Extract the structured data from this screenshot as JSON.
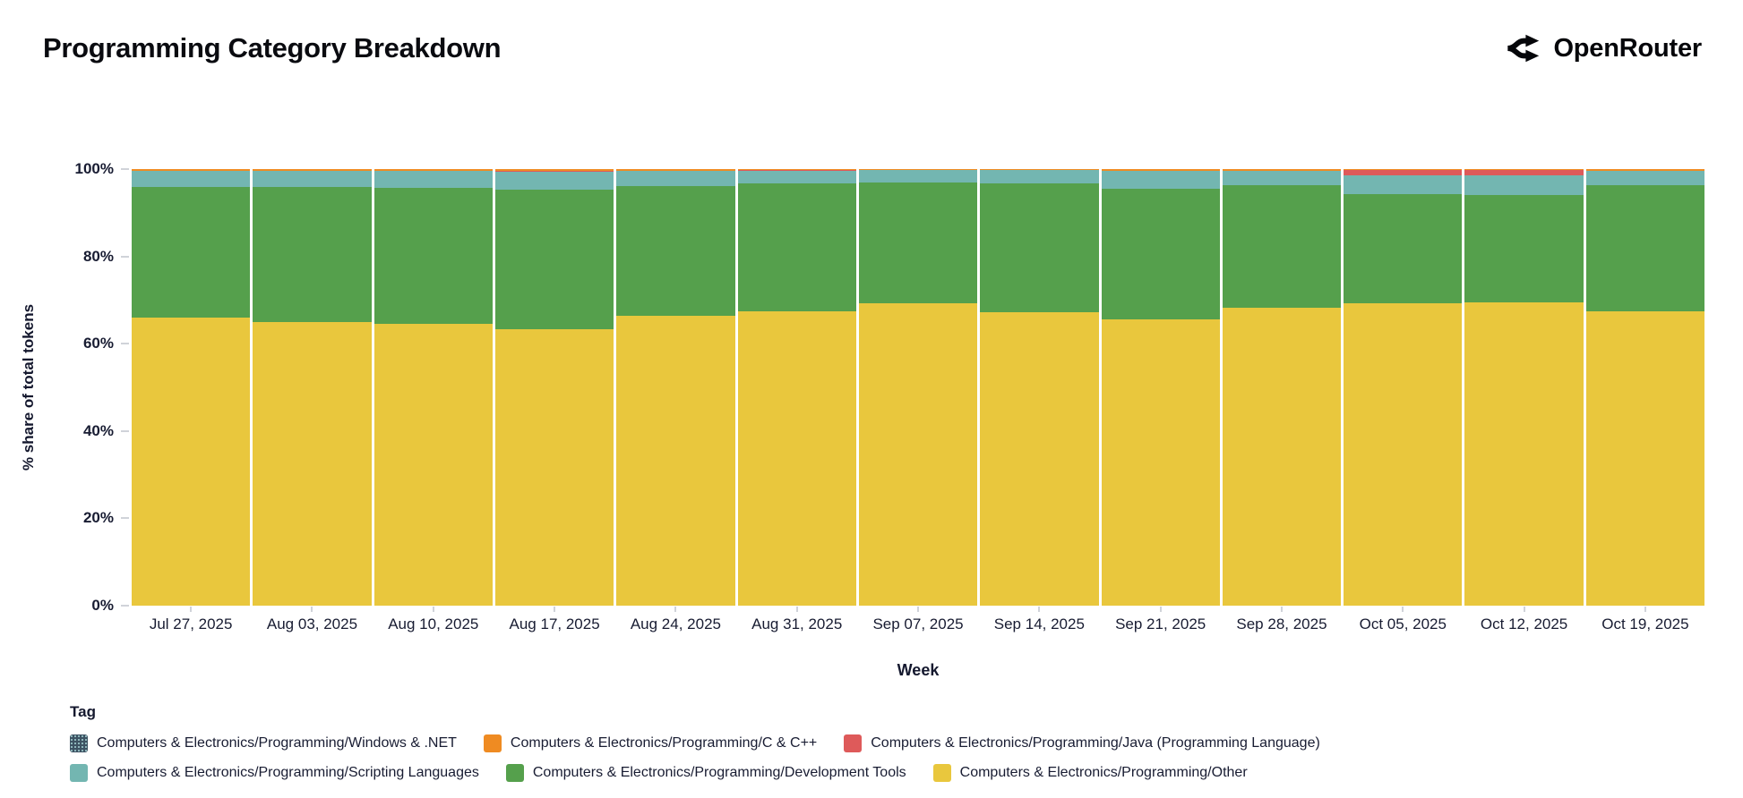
{
  "header": {
    "title": "Programming Category Breakdown",
    "brand": "OpenRouter"
  },
  "chart_data": {
    "type": "bar",
    "variant": "stacked-100-percent",
    "title": "Programming Category Breakdown",
    "xlabel": "Week",
    "ylabel": "% share of total tokens",
    "ylim": [
      0,
      100
    ],
    "yticks": [
      "0%",
      "20%",
      "40%",
      "60%",
      "80%",
      "100%"
    ],
    "grid": false,
    "legend_title": "Tag",
    "legend_position": "bottom",
    "categories": [
      "Jul 27, 2025",
      "Aug 03, 2025",
      "Aug 10, 2025",
      "Aug 17, 2025",
      "Aug 24, 2025",
      "Aug 31, 2025",
      "Sep 07, 2025",
      "Sep 14, 2025",
      "Sep 21, 2025",
      "Sep 28, 2025",
      "Oct 05, 2025",
      "Oct 12, 2025",
      "Oct 19, 2025"
    ],
    "series_stack_order": "bottom-to-top",
    "series": [
      {
        "name": "Computers & Electronics/Programming/Other",
        "color": "#e9c73d",
        "values": [
          66.0,
          65.0,
          64.5,
          63.25,
          66.3,
          67.5,
          69.3,
          67.3,
          65.6,
          68.3,
          69.3,
          69.5,
          67.4
        ]
      },
      {
        "name": "Computers & Electronics/Programming/Development Tools",
        "color": "#55a04c",
        "values": [
          30.0,
          31.0,
          31.25,
          32.0,
          29.8,
          29.3,
          27.6,
          29.5,
          29.9,
          28.0,
          25.0,
          24.6,
          28.9
        ]
      },
      {
        "name": "Computers & Electronics/Programming/Scripting Languages",
        "color": "#73b6b1",
        "values": [
          3.6,
          3.6,
          3.8,
          4.2,
          3.5,
          2.9,
          2.8,
          2.9,
          4.0,
          3.3,
          4.3,
          4.4,
          3.3
        ]
      },
      {
        "name": "Computers & Electronics/Programming/Java (Programming Language)",
        "color": "#de5a5a",
        "values": [
          0.05,
          0.05,
          0.05,
          0.1,
          0.05,
          0.05,
          0.05,
          0.05,
          0.1,
          0.05,
          1.2,
          1.3,
          0.05
        ]
      },
      {
        "name": "Computers & Electronics/Programming/C & C++",
        "color": "#ef8b22",
        "values": [
          0.3,
          0.3,
          0.35,
          0.4,
          0.3,
          0.2,
          0.2,
          0.2,
          0.35,
          0.3,
          0.15,
          0.15,
          0.3
        ]
      },
      {
        "name": "Computers & Electronics/Programming/Windows & .NET",
        "color": "#3d5363",
        "swatch_pattern": "speckle",
        "values": [
          0.05,
          0.05,
          0.05,
          0.05,
          0.05,
          0.05,
          0.05,
          0.05,
          0.05,
          0.05,
          0.05,
          0.05,
          0.05
        ]
      }
    ],
    "legend_display_order": [
      "Computers & Electronics/Programming/Windows & .NET",
      "Computers & Electronics/Programming/C & C++",
      "Computers & Electronics/Programming/Java (Programming Language)",
      "Computers & Electronics/Programming/Scripting Languages",
      "Computers & Electronics/Programming/Development Tools",
      "Computers & Electronics/Programming/Other"
    ]
  }
}
